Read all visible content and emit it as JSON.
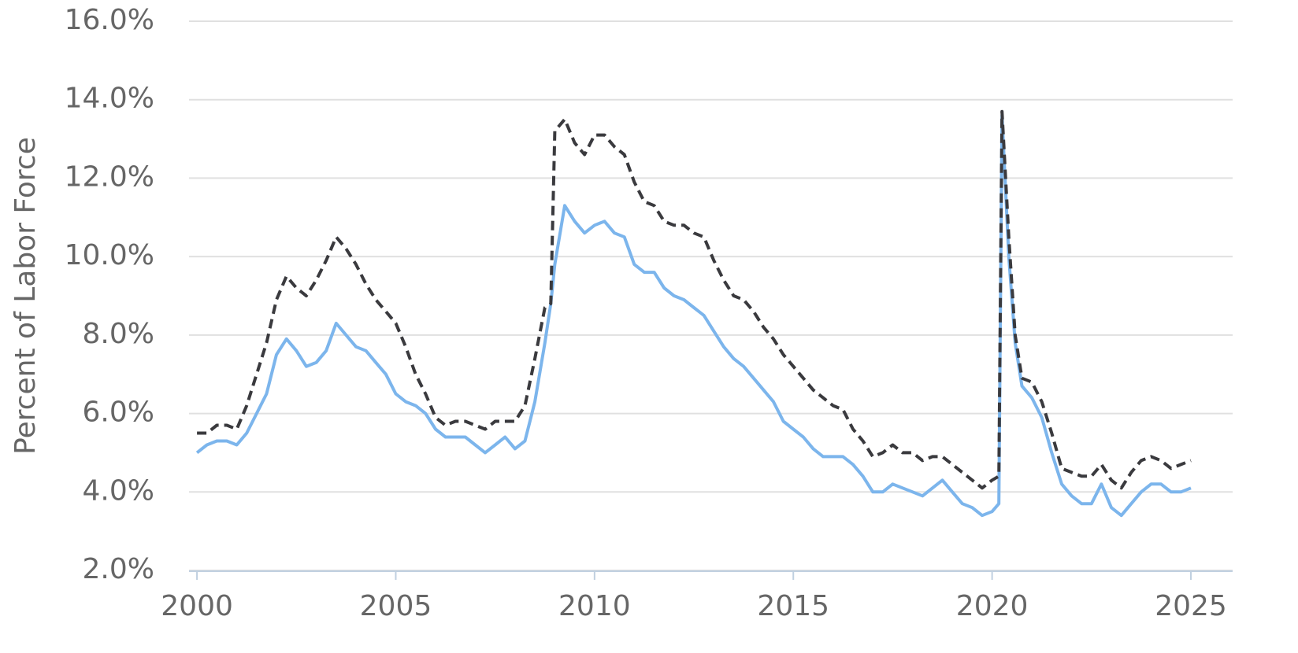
{
  "chart_data": {
    "type": "line",
    "y_label": "Percent of Labor Force",
    "x": [
      2000.0,
      2000.25,
      2000.5,
      2000.75,
      2001.0,
      2001.25,
      2001.5,
      2001.75,
      2002.0,
      2002.25,
      2002.5,
      2002.75,
      2003.0,
      2003.25,
      2003.5,
      2003.75,
      2004.0,
      2004.25,
      2004.5,
      2004.75,
      2005.0,
      2005.25,
      2005.5,
      2005.75,
      2006.0,
      2006.25,
      2006.5,
      2006.75,
      2007.0,
      2007.25,
      2007.5,
      2007.75,
      2008.0,
      2008.25,
      2008.5,
      2008.75,
      2008.9,
      2009.0,
      2009.25,
      2009.5,
      2009.75,
      2010.0,
      2010.25,
      2010.5,
      2010.75,
      2011.0,
      2011.25,
      2011.5,
      2011.75,
      2012.0,
      2012.25,
      2012.5,
      2012.75,
      2013.0,
      2013.25,
      2013.5,
      2013.75,
      2014.0,
      2014.25,
      2014.5,
      2014.75,
      2015.0,
      2015.25,
      2015.5,
      2015.75,
      2016.0,
      2016.25,
      2016.5,
      2016.75,
      2017.0,
      2017.25,
      2017.5,
      2017.75,
      2018.0,
      2018.25,
      2018.5,
      2018.75,
      2019.0,
      2019.25,
      2019.5,
      2019.75,
      2020.0,
      2020.17,
      2020.25,
      2020.42,
      2020.58,
      2020.75,
      2021.0,
      2021.25,
      2021.5,
      2021.75,
      2022.0,
      2022.25,
      2022.5,
      2022.75,
      2023.0,
      2023.25,
      2023.5,
      2023.75,
      2024.0,
      2024.25,
      2024.5,
      2024.75,
      2025.0
    ],
    "series": [
      {
        "color": "#7cb5ec",
        "line_style": "solid",
        "values": [
          5.0,
          5.2,
          5.3,
          5.3,
          5.2,
          5.5,
          6.0,
          6.5,
          7.5,
          7.9,
          7.6,
          7.2,
          7.3,
          7.6,
          8.3,
          8.0,
          7.7,
          7.6,
          7.3,
          7.0,
          6.5,
          6.3,
          6.2,
          6.0,
          5.6,
          5.4,
          5.4,
          5.4,
          5.2,
          5.0,
          5.2,
          5.4,
          5.1,
          5.3,
          6.3,
          7.8,
          8.8,
          9.8,
          11.3,
          10.9,
          10.6,
          10.8,
          10.9,
          10.6,
          10.5,
          9.8,
          9.6,
          9.6,
          9.2,
          9.0,
          8.9,
          8.7,
          8.5,
          8.1,
          7.7,
          7.4,
          7.2,
          6.9,
          6.6,
          6.3,
          5.8,
          5.6,
          5.4,
          5.1,
          4.9,
          4.9,
          4.9,
          4.7,
          4.4,
          4.0,
          4.0,
          4.2,
          4.1,
          4.0,
          3.9,
          4.1,
          4.3,
          4.0,
          3.7,
          3.6,
          3.4,
          3.5,
          3.7,
          13.6,
          10.0,
          7.8,
          6.7,
          6.4,
          5.9,
          5.0,
          4.2,
          3.9,
          3.7,
          3.7,
          4.2,
          3.6,
          3.4,
          3.7,
          4.0,
          4.2,
          4.2,
          4.0,
          4.0,
          4.1
        ]
      },
      {
        "color": "#3a3a3e",
        "line_style": "dashed",
        "values": [
          5.5,
          5.5,
          5.7,
          5.7,
          5.6,
          6.2,
          7.0,
          7.8,
          8.9,
          9.5,
          9.2,
          9.0,
          9.4,
          9.9,
          10.5,
          10.2,
          9.8,
          9.3,
          8.9,
          8.6,
          8.3,
          7.7,
          7.0,
          6.5,
          5.9,
          5.7,
          5.8,
          5.8,
          5.7,
          5.6,
          5.8,
          5.8,
          5.8,
          6.2,
          7.4,
          8.7,
          8.8,
          13.2,
          13.5,
          12.9,
          12.6,
          13.1,
          13.1,
          12.8,
          12.6,
          11.9,
          11.4,
          11.3,
          10.9,
          10.8,
          10.8,
          10.6,
          10.5,
          9.9,
          9.4,
          9.0,
          8.9,
          8.6,
          8.2,
          7.9,
          7.5,
          7.2,
          6.9,
          6.6,
          6.4,
          6.2,
          6.1,
          5.6,
          5.3,
          4.9,
          5.0,
          5.2,
          5.0,
          5.0,
          4.8,
          4.9,
          4.9,
          4.7,
          4.5,
          4.3,
          4.1,
          4.3,
          4.4,
          13.7,
          10.5,
          8.0,
          6.9,
          6.8,
          6.3,
          5.5,
          4.6,
          4.5,
          4.4,
          4.4,
          4.7,
          4.3,
          4.1,
          4.5,
          4.8,
          4.9,
          4.8,
          4.6,
          4.7,
          4.8
        ]
      }
    ],
    "xlim": [
      1999.8,
      2026.05
    ],
    "xticks": [
      2000,
      2005,
      2010,
      2015,
      2020,
      2025
    ],
    "ylim": [
      2,
      16
    ],
    "yticks": [
      {
        "value": 2,
        "label": "2.0%"
      },
      {
        "value": 4,
        "label": "4.0%"
      },
      {
        "value": 6,
        "label": "6.0%"
      },
      {
        "value": 8,
        "label": "8.0%"
      },
      {
        "value": 10,
        "label": "10.0%"
      },
      {
        "value": 12,
        "label": "12.0%"
      },
      {
        "value": 14,
        "label": "14.0%"
      },
      {
        "value": 16,
        "label": "16.0%"
      }
    ],
    "grid": true
  }
}
